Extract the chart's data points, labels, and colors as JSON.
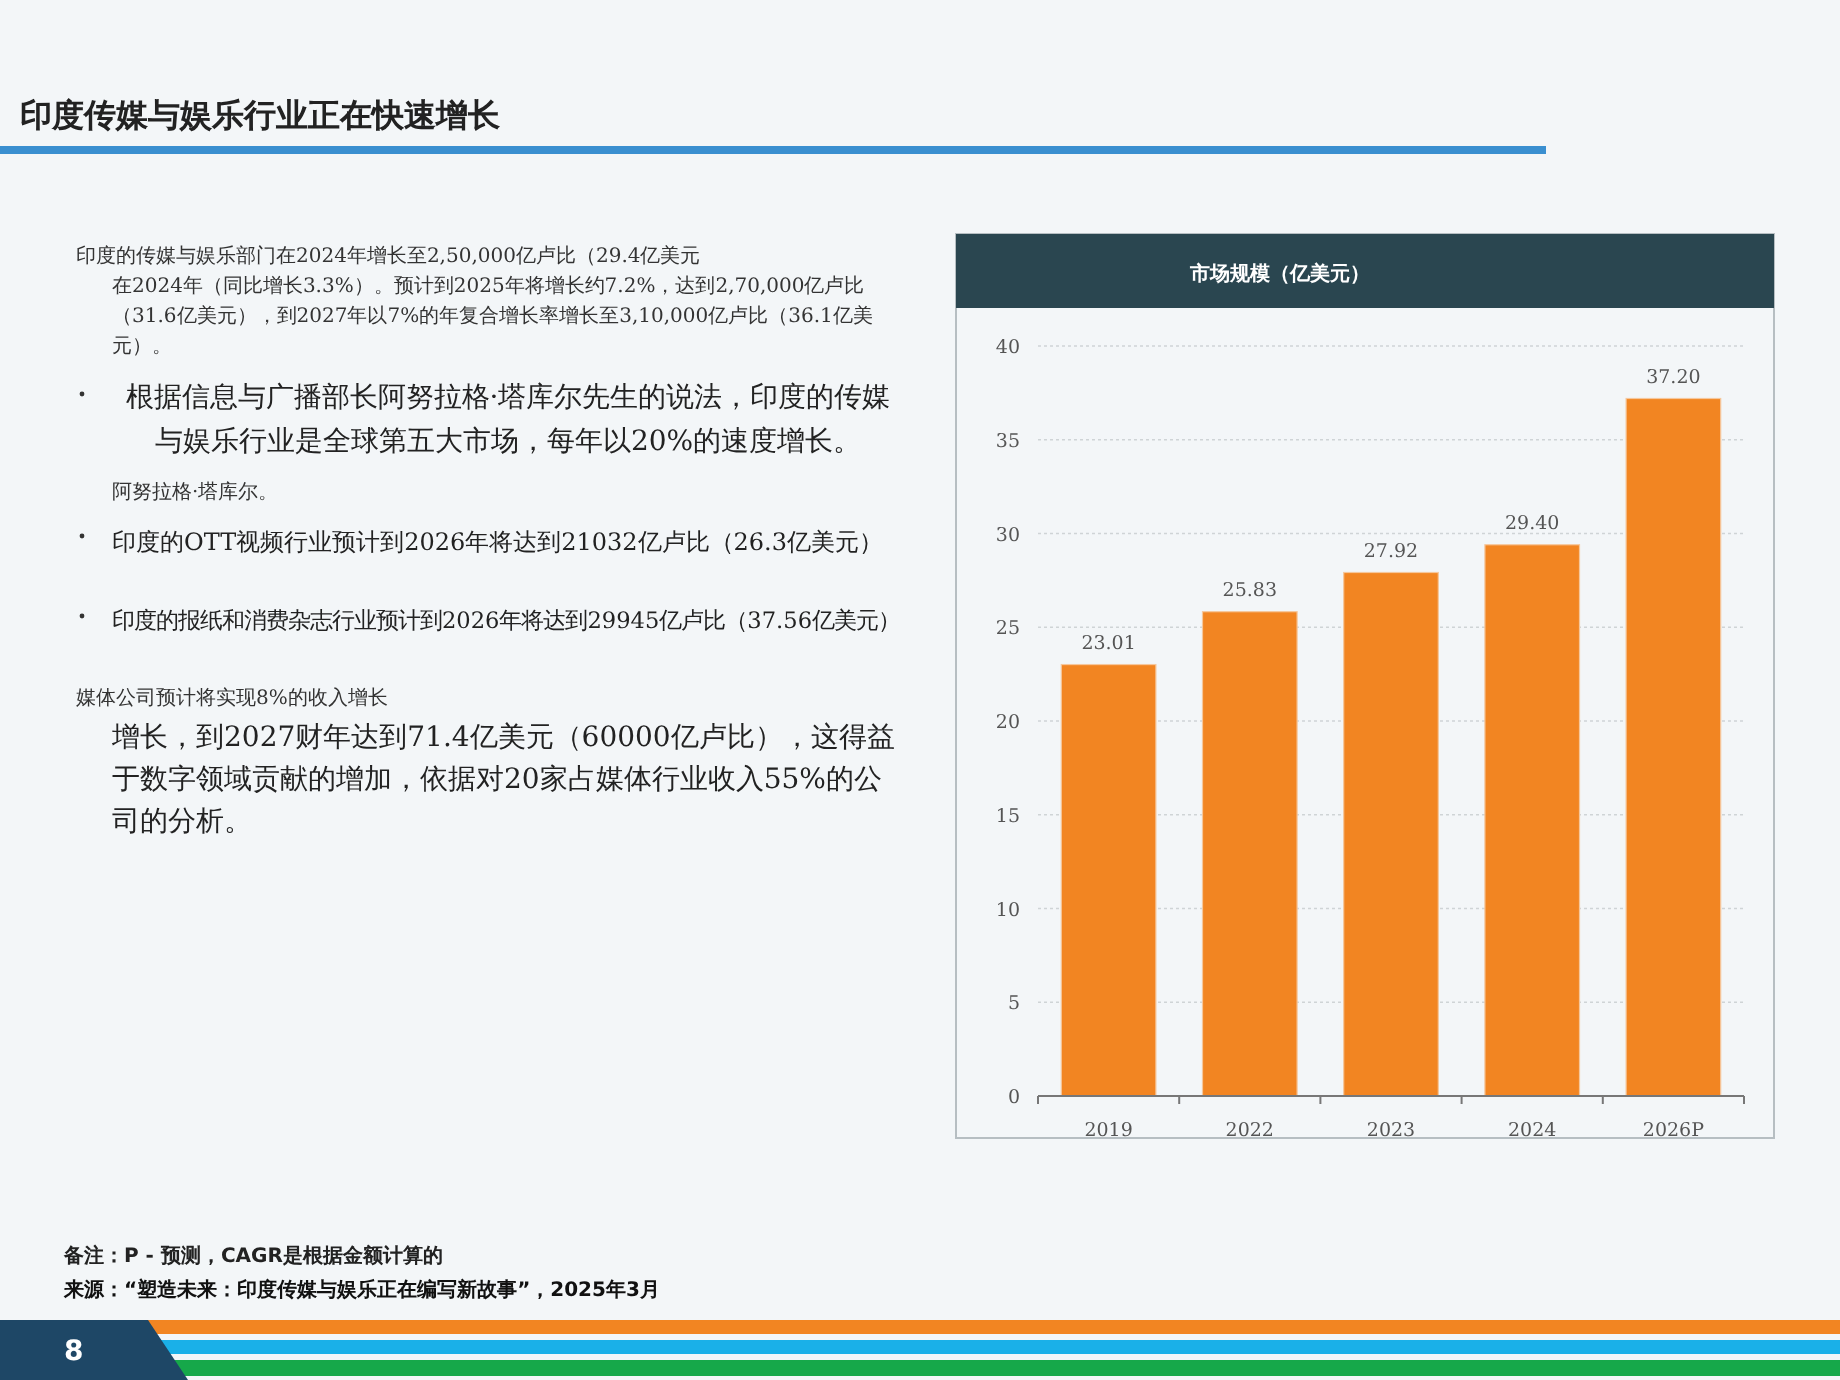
{
  "chart_data": {
    "type": "bar",
    "title": "印度传媒与娱乐行业正在快速增长",
    "subtitle": "市场规模（亿美元）",
    "categories": [
      "2019",
      "2022",
      "2023",
      "2024",
      "2026P"
    ],
    "values": [
      23.01,
      25.83,
      27.92,
      29.4,
      37.2
    ],
    "value_labels": [
      "23.01",
      "25.83",
      "27.92",
      "29.40",
      "37.20"
    ],
    "color": "#f28522",
    "ylim": [
      0,
      40
    ],
    "yticks": [
      0,
      5,
      10,
      15,
      20,
      25,
      30,
      35,
      40
    ],
    "grid": "y",
    "annotations": [
      "印度的传媒与娱乐部门在2024年增长至2,50,000亿卢比（29.4亿美元",
      "在2024年（同比增长3.3%）。预计到2025年将增长约7.2%，达到2,70,000亿卢比（31.6亿美元），到2027年以7%的年复合增长率增长至3,10,000亿卢比（36.1亿美元）。",
      "根据信息与广播部长阿努拉格·塔库尔先生的说法，印度的传媒与娱乐行业是全球第五大市场，每年以20%的速度增长。",
      "阿努拉格·塔库尔。",
      "印度的OTT视频行业预计到2026年将达到21032亿卢比（26.3亿美元）",
      "印度的报纸和消费杂志行业预计到2026年将达到29945亿卢比（37.56亿美元）",
      "媒体公司预计将实现8%的收入增长",
      "增长，到2027财年达到71.4亿美元（60000亿卢比），这得益于数字领域贡献的增加，依据对20家占媒体行业收入55%的公司的分析。",
      "备注：P - 预测，CAGR是根据金额计算的",
      "来源：“塑造未来：印度传媒与娱乐正在编写新故事”，2025年3月",
      "8"
    ]
  }
}
